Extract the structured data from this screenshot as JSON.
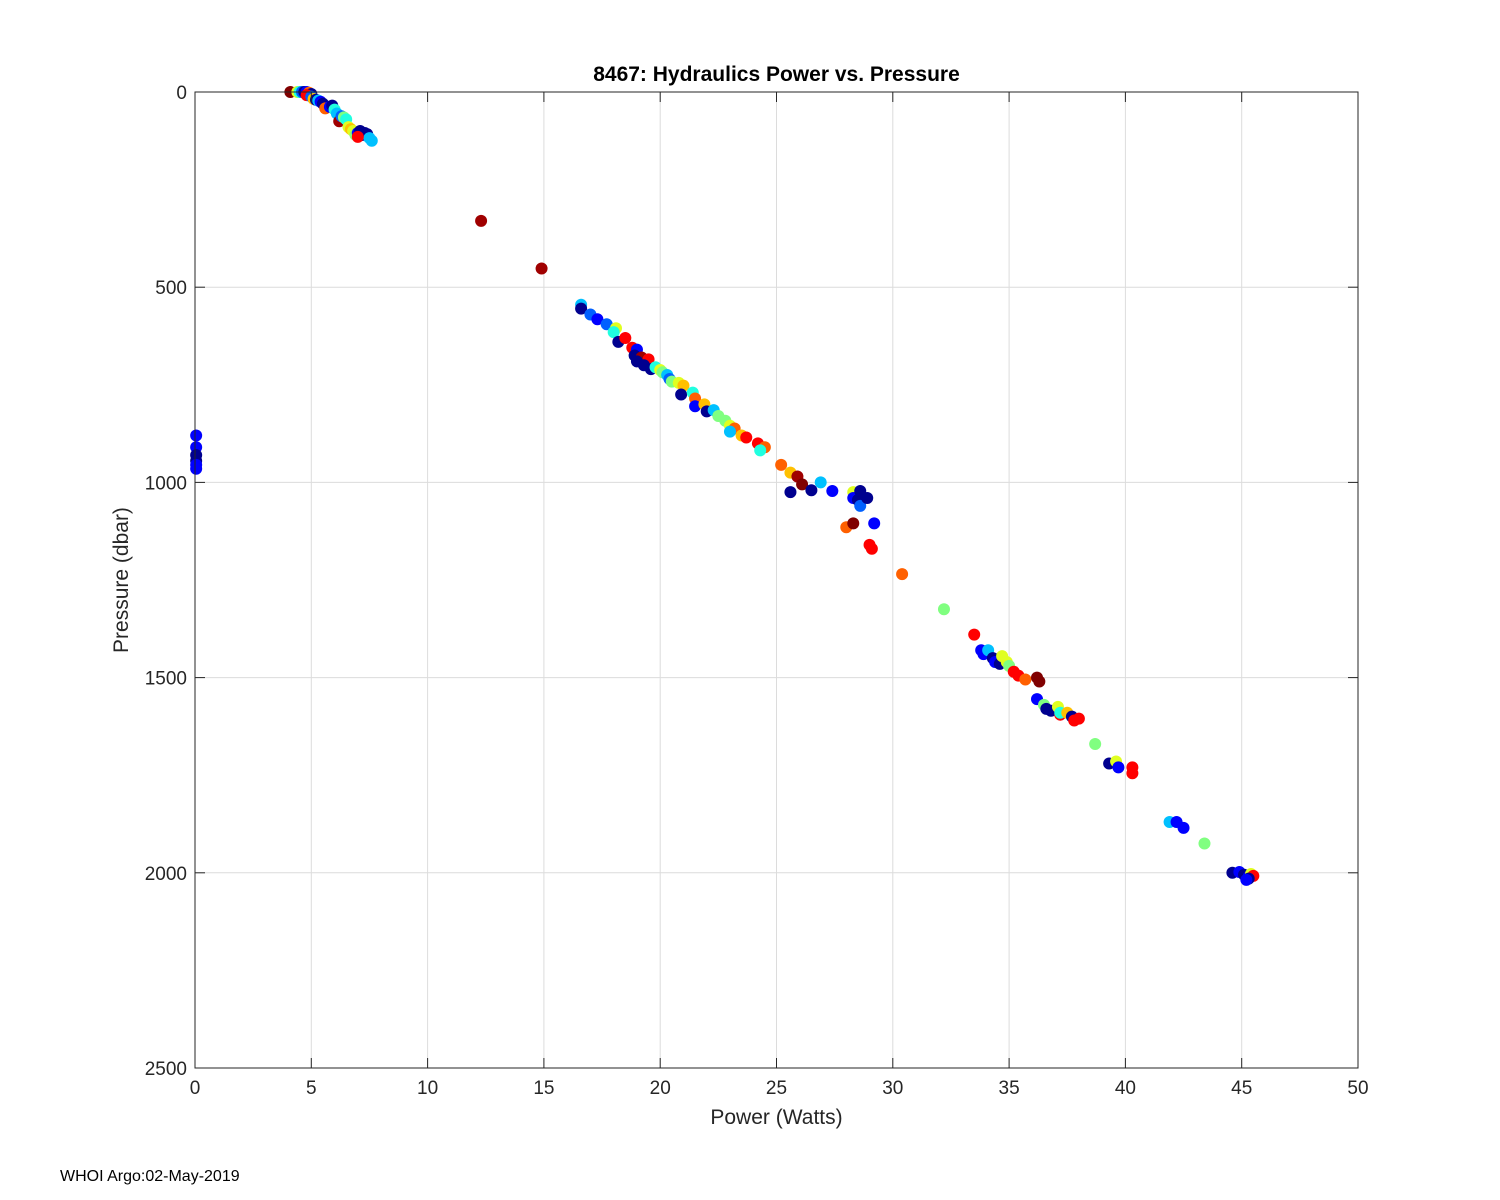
{
  "chart_data": {
    "type": "scatter",
    "title": "8467: Hydraulics Power vs. Pressure",
    "xlabel": "Power (Watts)",
    "ylabel": "Pressure (dbar)",
    "xlim": [
      0,
      50
    ],
    "ylim": [
      0,
      2500
    ],
    "y_reversed": true,
    "grid": true,
    "x_ticks": [
      "0",
      "5",
      "10",
      "15",
      "20",
      "25",
      "30",
      "35",
      "40",
      "45",
      "50"
    ],
    "y_ticks": [
      "0",
      "500",
      "1000",
      "1500",
      "2000",
      "2500"
    ],
    "colormap": [
      "#00008f",
      "#0000ff",
      "#0060ff",
      "#00c0ff",
      "#20ffe0",
      "#80ff80",
      "#e0ff20",
      "#ffc000",
      "#ff6000",
      "#ff0000",
      "#a00000",
      "#800000"
    ],
    "points": [
      [
        4.1,
        0,
        11
      ],
      [
        4.4,
        0,
        6
      ],
      [
        4.5,
        0,
        4
      ],
      [
        4.6,
        0,
        2
      ],
      [
        4.7,
        0,
        0
      ],
      [
        4.8,
        0,
        1
      ],
      [
        4.9,
        2,
        8
      ],
      [
        5.0,
        5,
        0
      ],
      [
        4.8,
        8,
        9
      ],
      [
        5.0,
        12,
        2
      ],
      [
        5.1,
        18,
        7
      ],
      [
        5.2,
        20,
        0
      ],
      [
        5.3,
        22,
        3
      ],
      [
        5.4,
        25,
        1
      ],
      [
        5.5,
        30,
        0
      ],
      [
        5.6,
        42,
        8
      ],
      [
        5.8,
        38,
        1
      ],
      [
        5.9,
        35,
        0
      ],
      [
        6.0,
        45,
        4
      ],
      [
        6.1,
        55,
        3
      ],
      [
        6.2,
        75,
        10
      ],
      [
        6.3,
        62,
        2
      ],
      [
        6.4,
        65,
        5
      ],
      [
        6.5,
        70,
        4
      ],
      [
        6.6,
        90,
        6
      ],
      [
        6.7,
        95,
        7
      ],
      [
        6.8,
        100,
        6
      ],
      [
        6.9,
        110,
        5
      ],
      [
        7.0,
        105,
        1
      ],
      [
        7.1,
        100,
        0
      ],
      [
        7.2,
        110,
        0
      ],
      [
        7.3,
        105,
        0
      ],
      [
        7.4,
        108,
        0
      ],
      [
        7.5,
        118,
        3
      ],
      [
        7.6,
        125,
        3
      ],
      [
        7.0,
        115,
        9
      ],
      [
        0.05,
        880,
        1
      ],
      [
        0.05,
        910,
        1
      ],
      [
        0.05,
        930,
        0
      ],
      [
        0.05,
        945,
        0
      ],
      [
        0.05,
        955,
        1
      ],
      [
        0.05,
        965,
        1
      ],
      [
        12.3,
        330,
        10
      ],
      [
        14.9,
        452,
        10
      ],
      [
        16.6,
        545,
        3
      ],
      [
        16.6,
        555,
        0
      ],
      [
        17.0,
        570,
        2
      ],
      [
        17.3,
        582,
        1
      ],
      [
        17.7,
        595,
        2
      ],
      [
        18.1,
        605,
        6
      ],
      [
        18.0,
        615,
        4
      ],
      [
        18.2,
        640,
        0
      ],
      [
        18.5,
        630,
        9
      ],
      [
        18.8,
        655,
        9
      ],
      [
        19.0,
        660,
        1
      ],
      [
        18.9,
        675,
        0
      ],
      [
        19.2,
        680,
        10
      ],
      [
        19.5,
        685,
        9
      ],
      [
        19.0,
        690,
        0
      ],
      [
        19.3,
        700,
        0
      ],
      [
        19.6,
        710,
        0
      ],
      [
        19.8,
        705,
        4
      ],
      [
        20.0,
        712,
        6
      ],
      [
        20.1,
        718,
        5
      ],
      [
        20.3,
        725,
        3
      ],
      [
        20.4,
        735,
        2
      ],
      [
        20.5,
        742,
        5
      ],
      [
        20.8,
        745,
        6
      ],
      [
        21.0,
        752,
        7
      ],
      [
        20.9,
        775,
        0
      ],
      [
        21.4,
        770,
        4
      ],
      [
        21.5,
        785,
        8
      ],
      [
        21.5,
        805,
        1
      ],
      [
        21.9,
        800,
        7
      ],
      [
        22.0,
        818,
        0
      ],
      [
        22.3,
        815,
        3
      ],
      [
        22.5,
        830,
        5
      ],
      [
        22.8,
        842,
        5
      ],
      [
        23.0,
        855,
        6
      ],
      [
        23.2,
        862,
        8
      ],
      [
        23.0,
        870,
        3
      ],
      [
        23.5,
        880,
        7
      ],
      [
        23.7,
        885,
        9
      ],
      [
        24.2,
        900,
        9
      ],
      [
        24.5,
        910,
        8
      ],
      [
        24.3,
        918,
        4
      ],
      [
        25.2,
        955,
        8
      ],
      [
        25.6,
        975,
        7
      ],
      [
        25.9,
        985,
        10
      ],
      [
        26.1,
        1005,
        11
      ],
      [
        25.6,
        1025,
        0
      ],
      [
        26.5,
        1020,
        0
      ],
      [
        26.9,
        1000,
        3
      ],
      [
        27.4,
        1022,
        1
      ],
      [
        28.0,
        1115,
        8
      ],
      [
        28.3,
        1105,
        11
      ],
      [
        28.3,
        1025,
        6
      ],
      [
        28.3,
        1040,
        1
      ],
      [
        28.5,
        1045,
        0
      ],
      [
        28.6,
        1060,
        2
      ],
      [
        28.6,
        1022,
        0
      ],
      [
        28.9,
        1040,
        0
      ],
      [
        29.0,
        1160,
        9
      ],
      [
        29.1,
        1170,
        9
      ],
      [
        29.2,
        1105,
        1
      ],
      [
        30.4,
        1235,
        8
      ],
      [
        32.2,
        1325,
        5
      ],
      [
        33.5,
        1390,
        9
      ],
      [
        33.8,
        1430,
        1
      ],
      [
        33.9,
        1440,
        1
      ],
      [
        34.1,
        1430,
        3
      ],
      [
        34.3,
        1450,
        0
      ],
      [
        34.4,
        1460,
        1
      ],
      [
        34.6,
        1465,
        0
      ],
      [
        34.7,
        1445,
        6
      ],
      [
        34.9,
        1460,
        6
      ],
      [
        35.0,
        1470,
        5
      ],
      [
        35.2,
        1485,
        9
      ],
      [
        35.4,
        1495,
        9
      ],
      [
        35.7,
        1505,
        8
      ],
      [
        36.2,
        1500,
        11
      ],
      [
        36.3,
        1510,
        11
      ],
      [
        36.2,
        1555,
        1
      ],
      [
        36.5,
        1570,
        5
      ],
      [
        36.6,
        1580,
        0
      ],
      [
        36.8,
        1585,
        0
      ],
      [
        37.1,
        1575,
        6
      ],
      [
        37.2,
        1595,
        9
      ],
      [
        37.2,
        1590,
        4
      ],
      [
        37.5,
        1590,
        7
      ],
      [
        37.7,
        1600,
        0
      ],
      [
        37.8,
        1610,
        9
      ],
      [
        38.0,
        1605,
        9
      ],
      [
        38.7,
        1670,
        5
      ],
      [
        39.3,
        1720,
        0
      ],
      [
        39.6,
        1715,
        6
      ],
      [
        39.7,
        1730,
        1
      ],
      [
        40.3,
        1730,
        9
      ],
      [
        40.3,
        1745,
        9
      ],
      [
        41.9,
        1870,
        3
      ],
      [
        42.2,
        1870,
        1
      ],
      [
        42.5,
        1885,
        1
      ],
      [
        43.4,
        1925,
        5
      ],
      [
        44.6,
        2000,
        0
      ],
      [
        44.9,
        1998,
        1
      ],
      [
        45.1,
        2005,
        0
      ],
      [
        45.3,
        2010,
        1
      ],
      [
        45.4,
        2003,
        6
      ],
      [
        45.5,
        2008,
        9
      ],
      [
        45.3,
        2015,
        0
      ],
      [
        45.2,
        2018,
        1
      ]
    ]
  },
  "footer": {
    "text": "WHOI Argo:02-May-2019"
  }
}
